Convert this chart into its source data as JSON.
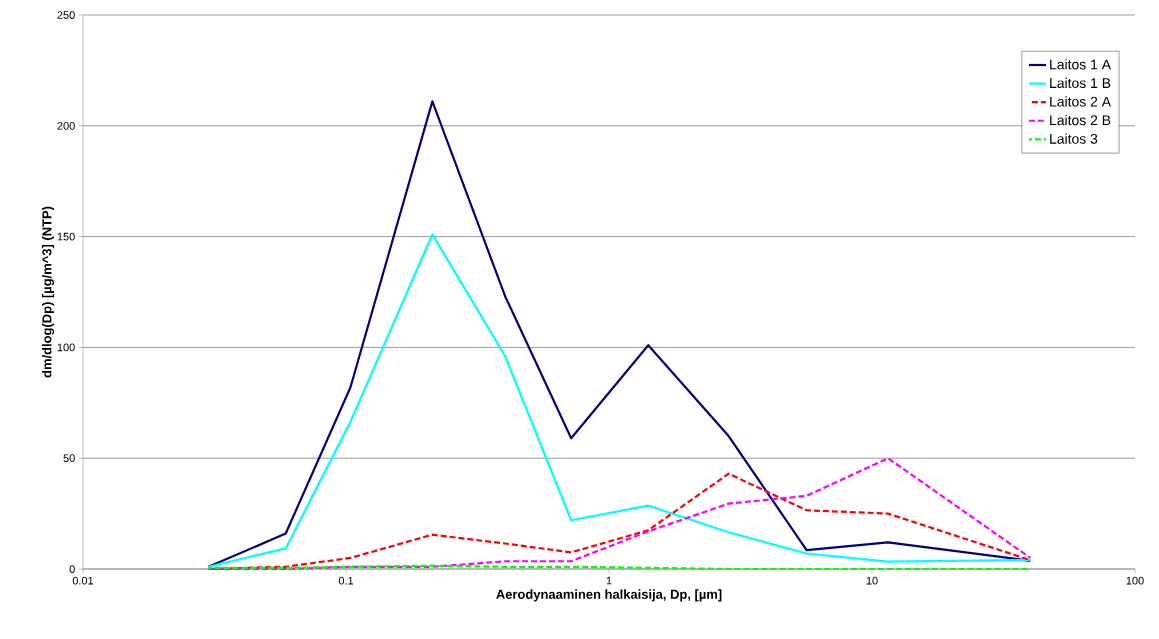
{
  "chart_data": {
    "type": "line",
    "xlabel": "Aerodynaaminen halkaisija, Dp, [µm]",
    "ylabel": "dm/dlog(Dp) [µg/m^3] (NTP)",
    "x": [
      0.03,
      0.059,
      0.104,
      0.213,
      0.403,
      0.718,
      1.41,
      2.85,
      5.64,
      11.5,
      40
    ],
    "series": [
      {
        "name": "Laitos 1 A",
        "color": "#000080",
        "line_style": "solid",
        "values": [
          1,
          16,
          82,
          211,
          123,
          59,
          101,
          60,
          8.5,
          12,
          3.7
        ]
      },
      {
        "name": "Laitos 1 B",
        "color": "#00ffff",
        "line_style": "solid",
        "values": [
          1,
          9.3,
          66.5,
          151,
          96,
          22,
          28.6,
          16.6,
          7,
          3.3,
          4.1
        ]
      },
      {
        "name": "Laitos 2 A",
        "color": "#ff0000",
        "line_style": "dashed",
        "values": [
          0,
          1,
          5,
          15.5,
          11.5,
          7.5,
          17.5,
          43,
          26.5,
          25,
          4
        ]
      },
      {
        "name": "Laitos 2 B",
        "color": "#ff00ff",
        "line_style": "dashed",
        "values": [
          0,
          0,
          1,
          1,
          3.5,
          3.5,
          17,
          29.5,
          33,
          50,
          5
        ]
      },
      {
        "name": "Laitos 3",
        "color": "#00ff00",
        "line_style": "dashed",
        "values": [
          0.5,
          0.5,
          1,
          1.5,
          1,
          1,
          0.5,
          0,
          0,
          0,
          0
        ]
      }
    ],
    "log": "x",
    "xlim": [
      0.01,
      100
    ],
    "xticks": [
      0.01,
      0.1,
      1,
      10,
      100
    ],
    "ylim": [
      0,
      250
    ],
    "yticks": [
      0,
      50,
      100,
      150,
      200,
      250
    ],
    "grid": "y",
    "legend": "top right",
    "marker": "none"
  }
}
